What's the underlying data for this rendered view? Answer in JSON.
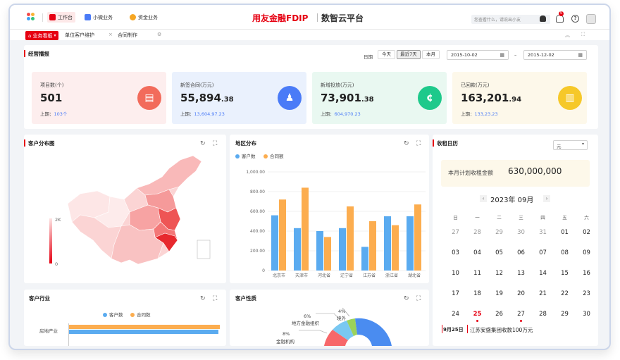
{
  "header": {
    "apps": [
      {
        "label": "工作台",
        "active": true
      },
      {
        "label": "小微业务",
        "active": false
      },
      {
        "label": "资金业务",
        "active": false
      }
    ],
    "brand": "用友金融FDIP",
    "brand_sub": "数智云平台",
    "search_placeholder": "您查看什么，请说出小友",
    "notification_count": "5"
  },
  "tabs": [
    {
      "label": "业务看板",
      "active": true
    },
    {
      "label": "单位客户维护",
      "active": false
    },
    {
      "label": "合同制作",
      "active": false
    }
  ],
  "ops": {
    "title": "经营播报",
    "date_label": "日期",
    "range_buttons": [
      {
        "label": "今天",
        "selected": false
      },
      {
        "label": "最近7天",
        "selected": true
      },
      {
        "label": "本月",
        "selected": false
      }
    ],
    "date_from": "2015-10-02",
    "date_sep": "–",
    "date_to": "2015-12-02",
    "kpis": [
      {
        "label": "项目数(个)",
        "value_int": "501",
        "value_dec": "",
        "prev_label": "上期：",
        "prev_value": "103个",
        "icon": "document-icon",
        "bg": "#fdeeee",
        "color": "#f26b5b"
      },
      {
        "label": "新签合同(万元)",
        "value_int": "55,894",
        "value_dec": ".38",
        "prev_label": "上期：",
        "prev_value": "13,604,97.23",
        "icon": "stamp-icon",
        "bg": "#eaf1fd",
        "color": "#4a7bf7"
      },
      {
        "label": "新增投放(万元)",
        "value_int": "73,901",
        "value_dec": ".38",
        "prev_label": "上期：",
        "prev_value": "604,970.23",
        "icon": "coin-icon",
        "bg": "#e9f8f1",
        "color": "#1ec98b"
      },
      {
        "label": "已回款(万元)",
        "value_int": "163,201",
        "value_dec": ".94",
        "prev_label": "上期：",
        "prev_value": "133,23.23",
        "icon": "bar-chart-icon",
        "bg": "#fdf8ea",
        "color": "#f6c829"
      }
    ]
  },
  "customer_map": {
    "title": "客户分布图",
    "legend_max": "2K",
    "legend_min": "0"
  },
  "region": {
    "title": "地区分布",
    "chart_data": {
      "type": "bar",
      "categories": [
        "北京市",
        "天津市",
        "河北省",
        "辽宁省",
        "江苏省",
        "浙江省",
        "湖北省"
      ],
      "series": [
        {
          "name": "客户数",
          "color": "#5aabf0",
          "values": [
            560,
            430,
            400,
            430,
            240,
            550,
            550
          ]
        },
        {
          "name": "合同额",
          "color": "#fcad4f",
          "values": [
            720,
            840,
            340,
            650,
            500,
            460,
            670
          ]
        }
      ],
      "ylim": [
        0,
        1000
      ],
      "yticks": [
        "0",
        "200.00",
        "400.00",
        "600.00",
        "800.00",
        "1,000.00"
      ]
    }
  },
  "rent_calendar": {
    "title": "收租日历",
    "unit_select": "元",
    "plan_label": "本月计划收租金额",
    "plan_value": "630,000,000",
    "month": "2023年 09月",
    "weekdays": [
      "日",
      "一",
      "二",
      "三",
      "四",
      "五",
      "六"
    ],
    "weeks": [
      [
        "27",
        "28",
        "29",
        "30",
        "31",
        "01",
        "02"
      ],
      [
        "03",
        "04",
        "05",
        "06",
        "07",
        "08",
        "09"
      ],
      [
        "10",
        "11",
        "12",
        "13",
        "14",
        "15",
        "16"
      ],
      [
        "17",
        "18",
        "19",
        "20",
        "21",
        "22",
        "23"
      ],
      [
        "24",
        "25",
        "26",
        "27",
        "28",
        "29",
        "30"
      ]
    ],
    "event_date": "9月25日",
    "event_text": "江苏安盛集团收款100万元"
  },
  "industry": {
    "title": "客户行业",
    "chart_data": {
      "type": "bar",
      "orientation": "horizontal",
      "categories": [
        "房地产业"
      ],
      "series": [
        {
          "name": "客户数",
          "color": "#5aabf0"
        },
        {
          "name": "合同数",
          "color": "#fcad4f"
        }
      ]
    }
  },
  "nature": {
    "title": "客户性质",
    "chart_data": {
      "type": "pie",
      "slices": [
        {
          "label": "境外",
          "percent": "4%",
          "color": "#9bd35b"
        },
        {
          "label": "地方金融组织",
          "percent": "6%",
          "color": "#79c8f2"
        },
        {
          "label": "金融机构",
          "percent": "8%",
          "color": "#f7686a"
        }
      ]
    }
  }
}
